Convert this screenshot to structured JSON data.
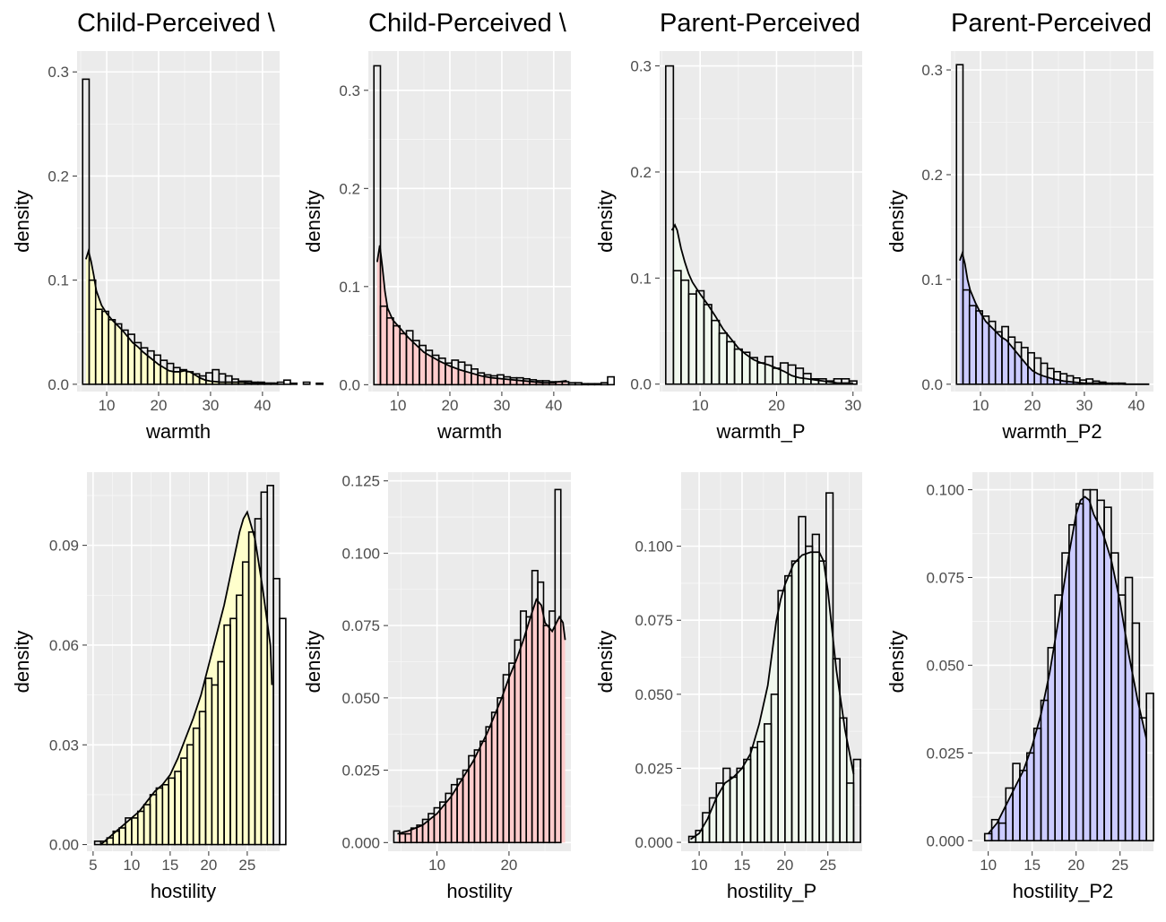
{
  "chart_data": [
    {
      "type": "bar",
      "title": "Child-Perceived \\",
      "xlabel": "warmth",
      "ylabel": "density",
      "fill": "#ffffcc",
      "xlim": [
        4.3,
        43.3
      ],
      "ylim": [
        -0.007,
        0.32
      ],
      "x_ticks": [
        10,
        20,
        30,
        40
      ],
      "y_ticks": [
        0,
        0.1,
        0.2,
        0.3
      ],
      "y_tick_labels": [
        "0.0",
        "0.1",
        "0.2",
        "0.3"
      ],
      "bin_width": 1.25,
      "bin_start": 5.375,
      "bar_values": [
        0.293,
        0.1,
        0.072,
        0.07,
        0.062,
        0.058,
        0.052,
        0.048,
        0.04,
        0.035,
        0.032,
        0.028,
        0.023,
        0.02,
        0.016,
        0.014,
        0.012,
        0.01,
        0.008,
        0.011,
        0.014,
        0.01,
        0.008,
        0.005,
        0.003,
        0.003,
        0.002,
        0.002,
        0.001,
        0.001,
        0.002,
        0.004,
        0.001,
        0.0,
        0.002,
        0.0,
        0.001
      ],
      "density_x": [
        6,
        6.5,
        7,
        7.5,
        8,
        9,
        10,
        11,
        12,
        13,
        14,
        15,
        16,
        17,
        18,
        19,
        20,
        21,
        22,
        23,
        24,
        25,
        26,
        27,
        28,
        29,
        30,
        32,
        34,
        36,
        38,
        40,
        42.5
      ],
      "density_y": [
        0.12,
        0.128,
        0.118,
        0.105,
        0.09,
        0.076,
        0.068,
        0.062,
        0.057,
        0.052,
        0.046,
        0.04,
        0.036,
        0.031,
        0.027,
        0.023,
        0.019,
        0.016,
        0.013,
        0.012,
        0.012,
        0.013,
        0.012,
        0.009,
        0.006,
        0.004,
        0.003,
        0.002,
        0.002,
        0.002,
        0.001,
        0.001,
        0.001
      ]
    },
    {
      "type": "bar",
      "title": "Child-Perceived \\",
      "xlabel": "warmth",
      "ylabel": "density",
      "fill": "#ffcccc",
      "xlim": [
        4.3,
        43.3
      ],
      "ylim": [
        -0.007,
        0.34
      ],
      "x_ticks": [
        10,
        20,
        30,
        40
      ],
      "y_ticks": [
        0,
        0.1,
        0.2,
        0.3
      ],
      "y_tick_labels": [
        "0.0",
        "0.1",
        "0.2",
        "0.3"
      ],
      "bin_width": 1.25,
      "bin_start": 5.375,
      "bar_values": [
        0.325,
        0.08,
        0.068,
        0.06,
        0.052,
        0.055,
        0.045,
        0.04,
        0.035,
        0.03,
        0.027,
        0.022,
        0.025,
        0.023,
        0.02,
        0.016,
        0.012,
        0.01,
        0.009,
        0.01,
        0.008,
        0.007,
        0.007,
        0.006,
        0.005,
        0.004,
        0.004,
        0.003,
        0.003,
        0.003,
        0.002,
        0.002,
        0.001,
        0.001,
        0.001,
        0.002,
        0.008
      ],
      "density_x": [
        6,
        6.5,
        7,
        7.5,
        8,
        9,
        10,
        11,
        12,
        13,
        14,
        15,
        16,
        17,
        18,
        20,
        22,
        24,
        26,
        28,
        30,
        32,
        34,
        36,
        38,
        40,
        41,
        42.5
      ],
      "density_y": [
        0.125,
        0.142,
        0.12,
        0.095,
        0.078,
        0.066,
        0.06,
        0.054,
        0.048,
        0.043,
        0.038,
        0.033,
        0.03,
        0.027,
        0.024,
        0.019,
        0.015,
        0.012,
        0.009,
        0.007,
        0.006,
        0.005,
        0.004,
        0.003,
        0.002,
        0.002,
        0.003,
        0.004
      ]
    },
    {
      "type": "bar",
      "title": "Parent-Perceived",
      "xlabel": "warmth_P",
      "ylabel": "density",
      "fill": "#f0f8ee",
      "xlim": [
        4.7,
        31.2
      ],
      "ylim": [
        -0.007,
        0.314
      ],
      "x_ticks": [
        10,
        20,
        30
      ],
      "y_ticks": [
        0,
        0.1,
        0.2,
        0.3
      ],
      "y_tick_labels": [
        "0.0",
        "0.1",
        "0.2",
        "0.3"
      ],
      "bin_width": 1,
      "bin_start": 5.5,
      "bar_values": [
        0.3,
        0.107,
        0.098,
        0.085,
        0.088,
        0.075,
        0.06,
        0.048,
        0.04,
        0.033,
        0.03,
        0.025,
        0.02,
        0.026,
        0.015,
        0.02,
        0.018,
        0.015,
        0.01,
        0.005,
        0.005,
        0.003,
        0.005,
        0.005,
        0.003
      ],
      "density_x": [
        6.3,
        6.7,
        7,
        7.5,
        8,
        8.5,
        9,
        10,
        11,
        12,
        13,
        14,
        15,
        16,
        17,
        18,
        19,
        20,
        21,
        22,
        23,
        24,
        25,
        26,
        28,
        30
      ],
      "density_y": [
        0.145,
        0.15,
        0.145,
        0.128,
        0.115,
        0.104,
        0.096,
        0.085,
        0.075,
        0.064,
        0.052,
        0.043,
        0.034,
        0.028,
        0.023,
        0.02,
        0.018,
        0.015,
        0.012,
        0.008,
        0.006,
        0.005,
        0.004,
        0.003,
        0.001,
        0.001
      ]
    },
    {
      "type": "bar",
      "title": "Parent-Perceived",
      "xlabel": "warmth_P2",
      "ylabel": "density",
      "fill": "#ccccff",
      "xlim": [
        4.3,
        43.3
      ],
      "ylim": [
        -0.007,
        0.318
      ],
      "x_ticks": [
        10,
        20,
        30,
        40
      ],
      "y_ticks": [
        0,
        0.1,
        0.2,
        0.3
      ],
      "y_tick_labels": [
        "0.0",
        "0.1",
        "0.2",
        "0.3"
      ],
      "bin_width": 1.25,
      "bin_start": 5.375,
      "bar_values": [
        0.305,
        0.09,
        0.075,
        0.07,
        0.065,
        0.06,
        0.05,
        0.055,
        0.045,
        0.04,
        0.035,
        0.03,
        0.025,
        0.02,
        0.015,
        0.012,
        0.01,
        0.008,
        0.006,
        0.004,
        0.005,
        0.003,
        0.002,
        0.001,
        0.001,
        0.001,
        0.0,
        0.0,
        0.0,
        0.0,
        0.0,
        0.0,
        0.0,
        0.0,
        0.0,
        0.0,
        0.002
      ],
      "density_x": [
        6,
        6.5,
        7,
        7.5,
        8,
        9,
        10,
        11,
        12,
        13,
        14,
        15,
        16,
        17,
        18,
        19,
        20,
        21,
        22,
        24,
        26,
        28,
        30,
        34,
        38,
        42.5
      ],
      "density_y": [
        0.118,
        0.125,
        0.115,
        0.1,
        0.09,
        0.078,
        0.068,
        0.06,
        0.055,
        0.05,
        0.045,
        0.042,
        0.036,
        0.03,
        0.024,
        0.018,
        0.013,
        0.01,
        0.008,
        0.005,
        0.003,
        0.002,
        0.001,
        0.001,
        0.0,
        0.0
      ]
    },
    {
      "type": "bar",
      "title": "",
      "xlabel": "hostility",
      "ylabel": "density",
      "fill": "#ffffcc",
      "xlim": [
        4.2,
        29.2
      ],
      "ylim": [
        -0.002,
        0.112
      ],
      "x_ticks": [
        5,
        10,
        15,
        20,
        25
      ],
      "y_ticks": [
        0,
        0.03,
        0.06,
        0.09
      ],
      "y_tick_labels": [
        "0.00",
        "0.03",
        "0.06",
        "0.09"
      ],
      "bin_width": 0.8,
      "bin_start": 5.2,
      "bar_values": [
        0.001,
        0.001,
        0.002,
        0.004,
        0.005,
        0.008,
        0.008,
        0.01,
        0.012,
        0.015,
        0.017,
        0.018,
        0.02,
        0.022,
        0.026,
        0.03,
        0.035,
        0.04,
        0.05,
        0.048,
        0.055,
        0.066,
        0.068,
        0.075,
        0.085,
        0.094,
        0.098,
        0.106,
        0.108,
        0.08,
        0.068
      ],
      "density_x": [
        6,
        7,
        8,
        9,
        10,
        11,
        12,
        13,
        14,
        15,
        16,
        17,
        18,
        19,
        20,
        21,
        22,
        23,
        24,
        24.5,
        25,
        26,
        27,
        28,
        28.2
      ],
      "density_y": [
        0.0,
        0.002,
        0.004,
        0.006,
        0.008,
        0.01,
        0.013,
        0.016,
        0.018,
        0.021,
        0.026,
        0.032,
        0.038,
        0.045,
        0.054,
        0.063,
        0.072,
        0.083,
        0.094,
        0.098,
        0.1,
        0.092,
        0.077,
        0.06,
        0.048
      ]
    },
    {
      "type": "bar",
      "title": "",
      "xlabel": "hostility",
      "ylabel": "density",
      "fill": "#ffcccc",
      "xlim": [
        3.2,
        28.6
      ],
      "ylim": [
        -0.003,
        0.128
      ],
      "x_ticks": [
        10,
        20
      ],
      "y_ticks": [
        0,
        0.025,
        0.05,
        0.075,
        0.1,
        0.125
      ],
      "y_tick_labels": [
        "0.000",
        "0.025",
        "0.050",
        "0.075",
        "0.100",
        "0.125"
      ],
      "bin_width": 0.8,
      "bin_start": 4.0,
      "bar_values": [
        0.004,
        0.003,
        0.003,
        0.005,
        0.006,
        0.008,
        0.01,
        0.012,
        0.014,
        0.017,
        0.02,
        0.022,
        0.025,
        0.03,
        0.032,
        0.035,
        0.04,
        0.045,
        0.05,
        0.058,
        0.062,
        0.07,
        0.08,
        0.078,
        0.094,
        0.09,
        0.075,
        0.08,
        0.122
      ],
      "density_x": [
        4.5,
        6,
        7,
        8,
        9,
        10,
        11,
        12,
        13,
        14,
        15,
        16,
        17,
        18,
        19,
        20,
        21,
        22,
        23,
        23.8,
        24.5,
        25,
        26,
        27,
        27.5,
        27.8
      ],
      "density_y": [
        0.003,
        0.004,
        0.005,
        0.006,
        0.008,
        0.01,
        0.013,
        0.016,
        0.02,
        0.024,
        0.028,
        0.033,
        0.038,
        0.044,
        0.05,
        0.057,
        0.063,
        0.07,
        0.078,
        0.084,
        0.082,
        0.076,
        0.073,
        0.078,
        0.076,
        0.07
      ]
    },
    {
      "type": "bar",
      "title": "",
      "xlabel": "hostility_P",
      "ylabel": "density",
      "fill": "#f0f8ee",
      "xlim": [
        7.9,
        29.0
      ],
      "ylim": [
        -0.003,
        0.125
      ],
      "x_ticks": [
        10,
        15,
        20,
        25
      ],
      "y_ticks": [
        0,
        0.025,
        0.05,
        0.075,
        0.1
      ],
      "y_tick_labels": [
        "0.000",
        "0.025",
        "0.050",
        "0.075",
        "0.100"
      ],
      "bin_width": 0.8,
      "bin_start": 8.8,
      "bar_values": [
        0.002,
        0.004,
        0.01,
        0.015,
        0.02,
        0.025,
        0.022,
        0.025,
        0.028,
        0.032,
        0.034,
        0.04,
        0.05,
        0.085,
        0.09,
        0.095,
        0.11,
        0.1,
        0.104,
        0.095,
        0.118,
        0.062,
        0.042,
        0.02,
        0.028
      ],
      "density_x": [
        9,
        10,
        11,
        12,
        13,
        14,
        15,
        16,
        17,
        18,
        19,
        19.5,
        20,
        21,
        22,
        23,
        24,
        24.5,
        25,
        26,
        27,
        28
      ],
      "density_y": [
        0.001,
        0.003,
        0.008,
        0.015,
        0.02,
        0.022,
        0.025,
        0.03,
        0.04,
        0.053,
        0.075,
        0.082,
        0.087,
        0.094,
        0.097,
        0.098,
        0.098,
        0.095,
        0.085,
        0.058,
        0.038,
        0.023
      ]
    },
    {
      "type": "bar",
      "title": "",
      "xlabel": "hostility_P2",
      "ylabel": "density",
      "fill": "#ccccff",
      "xlim": [
        8.2,
        28.8
      ],
      "ylim": [
        -0.003,
        0.105
      ],
      "x_ticks": [
        10,
        15,
        20,
        25
      ],
      "y_ticks": [
        0,
        0.025,
        0.05,
        0.075,
        0.1
      ],
      "y_tick_labels": [
        "0.000",
        "0.025",
        "0.050",
        "0.075",
        "0.100"
      ],
      "bin_width": 0.8,
      "bin_start": 9.6,
      "bar_values": [
        0.002,
        0.006,
        0.005,
        0.015,
        0.022,
        0.02,
        0.025,
        0.032,
        0.04,
        0.055,
        0.07,
        0.082,
        0.09,
        0.096,
        0.1,
        0.1,
        0.097,
        0.095,
        0.082,
        0.07,
        0.075,
        0.062,
        0.035,
        0.042
      ],
      "density_x": [
        10,
        11,
        12,
        13,
        14,
        15,
        16,
        17,
        18,
        19,
        20,
        20.5,
        21,
        21.5,
        22,
        23,
        24,
        25,
        26,
        27,
        28
      ],
      "density_y": [
        0.002,
        0.005,
        0.01,
        0.015,
        0.02,
        0.027,
        0.036,
        0.048,
        0.063,
        0.079,
        0.093,
        0.097,
        0.098,
        0.097,
        0.093,
        0.088,
        0.08,
        0.068,
        0.053,
        0.04,
        0.029
      ]
    }
  ]
}
